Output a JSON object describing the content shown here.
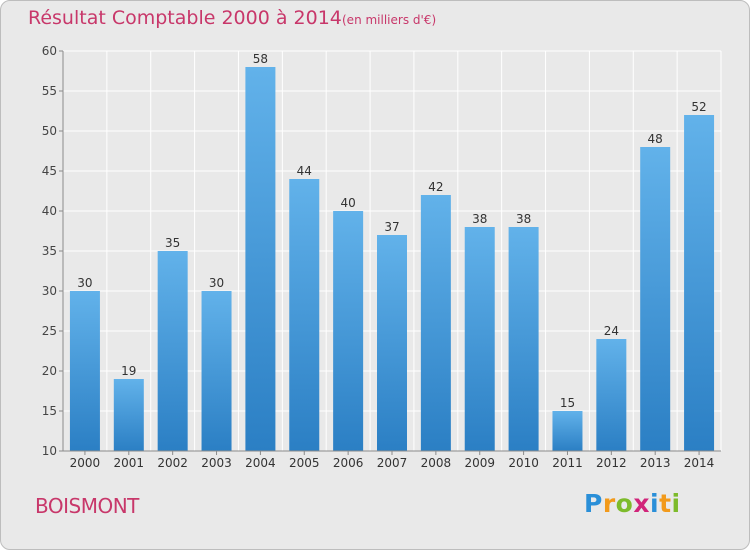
{
  "header": {
    "title": "Résultat Comptable 2000 à 2014",
    "subtitle": "(en milliers d'€)"
  },
  "footer": {
    "place": "BOISMONT"
  },
  "logo": {
    "letters": [
      "P",
      "r",
      "o",
      "x",
      "i",
      "t",
      "i"
    ],
    "colors": [
      "#2a8fd8",
      "#f29a1b",
      "#7dbb2b",
      "#d1247a",
      "#2a8fd8",
      "#f29a1b",
      "#7dbb2b"
    ]
  },
  "colors": {
    "bar_light": "#62b2ea",
    "bar_dark": "#2b7fc4",
    "text": "#c8376a"
  },
  "chart_data": {
    "type": "bar",
    "title": "Résultat Comptable 2000 à 2014",
    "xlabel": "",
    "ylabel": "",
    "ylim": [
      10,
      60
    ],
    "yticks": [
      10,
      15,
      20,
      25,
      30,
      35,
      40,
      45,
      50,
      55,
      60
    ],
    "grid": true,
    "categories": [
      "2000",
      "2001",
      "2002",
      "2003",
      "2004",
      "2005",
      "2006",
      "2007",
      "2008",
      "2009",
      "2010",
      "2011",
      "2012",
      "2013",
      "2014"
    ],
    "values": [
      30,
      19,
      35,
      30,
      58,
      44,
      40,
      37,
      42,
      38,
      38,
      15,
      24,
      48,
      52
    ]
  }
}
